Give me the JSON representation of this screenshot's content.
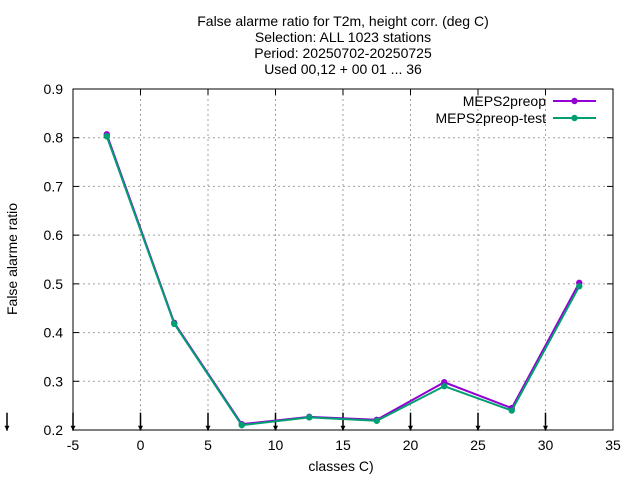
{
  "chart_data": {
    "type": "line",
    "title_lines": [
      "False alarme ratio  for T2m, height corr. (deg C)",
      "Selection: ALL    1023 stations",
      "Period: 20250702-20250725",
      "Used 00,12 + 00 01 ... 36"
    ],
    "xlabel": "classes C)",
    "ylabel": "False alarme ratio",
    "xlim": [
      -5,
      35
    ],
    "ylim": [
      0.2,
      0.9
    ],
    "xticks": [
      -5,
      0,
      5,
      10,
      15,
      20,
      25,
      30,
      35
    ],
    "xtick_labels": [
      "-5",
      "0",
      "5",
      "10",
      "15",
      "20",
      "25",
      "30",
      "35"
    ],
    "yticks": [
      0.2,
      0.3,
      0.4,
      0.5,
      0.6,
      0.7,
      0.8,
      0.9
    ],
    "ytick_labels": [
      "0.2",
      "0.3",
      "0.4",
      "0.5",
      "0.6",
      "0.7",
      "0.8",
      "0.9"
    ],
    "grid": true,
    "legend_position": "top-right",
    "x": [
      -2.5,
      2.5,
      7.5,
      12.5,
      17.5,
      22.5,
      27.5,
      32.5
    ],
    "series": [
      {
        "name": "MEPS2preop",
        "color": "#9400d3",
        "values": [
          0.807,
          0.42,
          0.212,
          0.227,
          0.221,
          0.298,
          0.245,
          0.502
        ]
      },
      {
        "name": "MEPS2preop-test",
        "color": "#009e73",
        "values": [
          0.803,
          0.418,
          0.21,
          0.226,
          0.219,
          0.29,
          0.24,
          0.495
        ]
      }
    ],
    "sample_markers_x": [
      -5,
      0,
      5,
      10,
      15,
      20,
      25,
      30
    ],
    "sample_markers_y": 0.215,
    "outside_marker_y": 0.215
  }
}
